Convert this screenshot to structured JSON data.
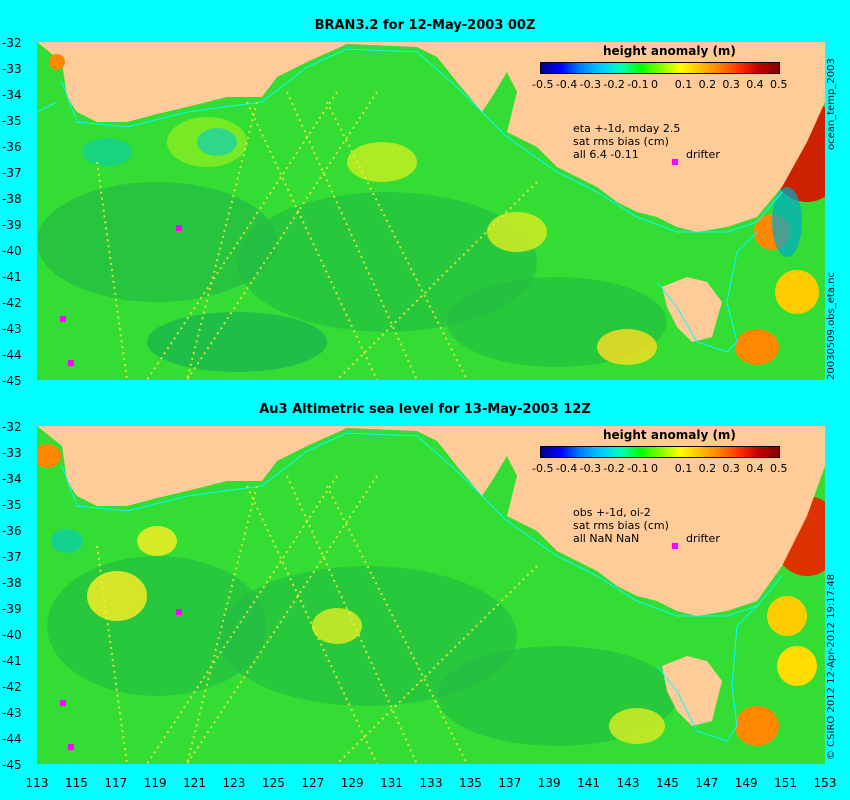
{
  "panels": [
    {
      "title": "BRAN3.2 for 12-May-2003 00Z",
      "legend_title": "height anomaly (m)",
      "notes": [
        "eta +-1d, mday 2.5",
        "sat rms bias (cm)",
        "all 6.4 -0.11"
      ],
      "drifter_label": "drifter"
    },
    {
      "title": "Au3 Altimetric sea level  for 13-May-2003 12Z",
      "legend_title": "height anomaly (m)",
      "notes": [
        "obs +-1d, oi-2",
        "sat rms bias (cm)",
        "all NaN NaN"
      ],
      "drifter_label": "drifter"
    }
  ],
  "colorbar_ticks": [
    "-0.5",
    "-0.4",
    "-0.3",
    "-0.2",
    "-0.1",
    "0",
    "0.1",
    "0.2",
    "0.3",
    "0.4",
    "0.5"
  ],
  "lat_ticks": [
    "-32",
    "-33",
    "-34",
    "-35",
    "-36",
    "-37",
    "-38",
    "-39",
    "-40",
    "-41",
    "-42",
    "-43",
    "-44",
    "-45"
  ],
  "lon_ticks": [
    "113",
    "115",
    "117",
    "119",
    "121",
    "123",
    "125",
    "127",
    "129",
    "131",
    "133",
    "135",
    "137",
    "139",
    "141",
    "143",
    "145",
    "147",
    "149",
    "151",
    "153"
  ],
  "side_labels": {
    "top_upper": "ocean_temp_2003",
    "top_lower": "20030509.obs_eta.nc",
    "bottom": "© CSIRO  2012   12-Apr-2012 19:17:48"
  },
  "colors": {
    "land": "#ffcc99",
    "sea": "#33dd33",
    "background": "#00ffff",
    "drifter": "#ff00ff"
  }
}
